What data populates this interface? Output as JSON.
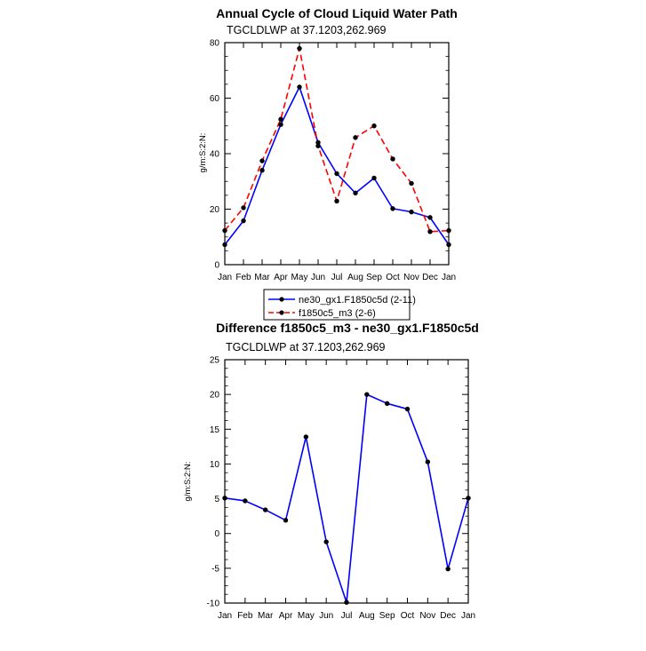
{
  "chart_data": [
    {
      "type": "line",
      "title": "Annual Cycle of Cloud Liquid Water Path",
      "subtitle": "TGCLDLWP at 37.1203,262.969",
      "ylabel": "g/m:S:2:N:",
      "xlabel": "",
      "categories": [
        "Jan",
        "Feb",
        "Mar",
        "Apr",
        "May",
        "Jun",
        "Jul",
        "Aug",
        "Sep",
        "Oct",
        "Nov",
        "Dec",
        "Jan"
      ],
      "ylim": [
        0,
        80
      ],
      "yticks": [
        0,
        20,
        40,
        60,
        80
      ],
      "grid": false,
      "series": [
        {
          "name": "ne30_gx1.F1850c5d (2-11)",
          "color": "#0000ff",
          "style": "solid",
          "values": [
            7.2,
            15.8,
            34.0,
            50.5,
            64.0,
            44.0,
            32.8,
            25.8,
            31.2,
            20.2,
            19.0,
            17.0,
            7.2
          ]
        },
        {
          "name": "f1850c5_m3 (2-6)",
          "color": "#ff0000",
          "style": "dashed",
          "values": [
            12.3,
            20.5,
            37.4,
            52.4,
            77.9,
            42.8,
            22.9,
            45.8,
            50.0,
            38.1,
            29.3,
            11.9,
            12.3
          ]
        }
      ],
      "legend": "below"
    },
    {
      "type": "line",
      "title": "Difference f1850c5_m3 - ne30_gx1.F1850c5d",
      "subtitle": "TGCLDLWP at 37.1203,262.969",
      "ylabel": "g/m:S:2:N:",
      "xlabel": "",
      "categories": [
        "Jan",
        "Feb",
        "Mar",
        "Apr",
        "May",
        "Jun",
        "Jul",
        "Aug",
        "Sep",
        "Oct",
        "Nov",
        "Dec",
        "Jan"
      ],
      "ylim": [
        -10,
        25
      ],
      "yticks": [
        -10,
        -5,
        0,
        5,
        10,
        15,
        20,
        25
      ],
      "grid": false,
      "series": [
        {
          "color": "#0000ff",
          "style": "solid",
          "values": [
            5.1,
            4.7,
            3.4,
            1.9,
            13.9,
            -1.2,
            -9.9,
            20.0,
            18.7,
            17.9,
            10.3,
            -5.1,
            5.1
          ]
        }
      ]
    }
  ]
}
